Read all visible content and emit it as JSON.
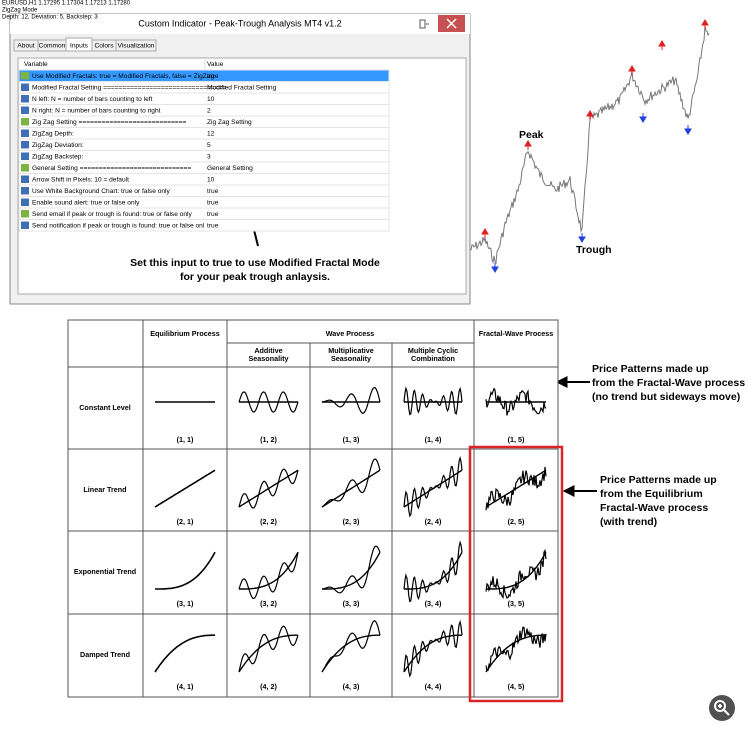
{
  "terminal_info": [
    "EURUSD,H1  1.17295 1.17304 1.17213 1.17280",
    "ZigZag Mode",
    "Depth: 12, Deviation: 5, Backstep: 3"
  ],
  "dialog": {
    "title": "Custom Indicator - Peak-Trough Analysis MT4 v1.2",
    "tabs": [
      "About",
      "Common",
      "Inputs",
      "Colors",
      "Visualization"
    ],
    "columns": [
      "Variable",
      "Value"
    ],
    "rows": [
      [
        "Use Modified Fractals: true = Modified Fractals, false = ZigZag",
        "true"
      ],
      [
        "Modified Fractal Setting ================================",
        "Modified Fractal Setting"
      ],
      [
        "N left:   N = number of bars counting to left",
        "10"
      ],
      [
        "N right:  N = number of bars counting to right",
        "2"
      ],
      [
        "Zig Zag Setting ============================",
        "Zig Zag Setting"
      ],
      [
        "ZigZag Depth:",
        "12"
      ],
      [
        "ZigZag Deviation:",
        "5"
      ],
      [
        "ZigZag Backstep:",
        "3"
      ],
      [
        "General Setting =============================",
        "General Setting"
      ],
      [
        "Arrow Shift in Pixels: 10 = default",
        "10"
      ],
      [
        "Use White Background Chart: true or false only",
        "true"
      ],
      [
        "Enable sound alert: true or false only",
        "true"
      ],
      [
        "Send email if peak or trough is found: true or false only",
        "true"
      ],
      [
        "Send notification if peak or trough is found: true or false onl",
        "true"
      ]
    ]
  },
  "annotation": [
    "Set this input to true to use Modified Fractal Mode",
    "for your peak trough anlaysis."
  ],
  "chart_labels": {
    "peak": "Peak",
    "trough": "Trough"
  },
  "table": {
    "group_headers": [
      "Equilibrium Process",
      "Wave Process",
      "Fractal-Wave Process"
    ],
    "sub_headers": [
      [
        "Additive",
        "Seasonality"
      ],
      [
        "Multiplicative",
        "Seasonality"
      ],
      [
        "Multiple Cyclic",
        "Combination"
      ]
    ],
    "rows": [
      {
        "label": "Constant Level",
        "cells": [
          "(1, 1)",
          "(1, 2)",
          "(1, 3)",
          "(1, 4)",
          "(1, 5)"
        ]
      },
      {
        "label": "Linear Trend",
        "cells": [
          "(2, 1)",
          "(2, 2)",
          "(2, 3)",
          "(2, 4)",
          "(2, 5)"
        ]
      },
      {
        "label": "Exponential Trend",
        "cells": [
          "(3, 1)",
          "(3, 2)",
          "(3, 3)",
          "(3, 4)",
          "(3, 5)"
        ]
      },
      {
        "label": "Damped Trend",
        "cells": [
          "(4, 1)",
          "(4, 2)",
          "(4, 3)",
          "(4, 4)",
          "(4, 5)"
        ]
      }
    ]
  },
  "notes": [
    [
      "Price Patterns made up",
      "from the Fractal-Wave process",
      "(no trend but sideways move)"
    ],
    [
      "Price Patterns made up",
      "from the Equilibrium",
      "Fractal-Wave process",
      "(with trend)"
    ]
  ]
}
